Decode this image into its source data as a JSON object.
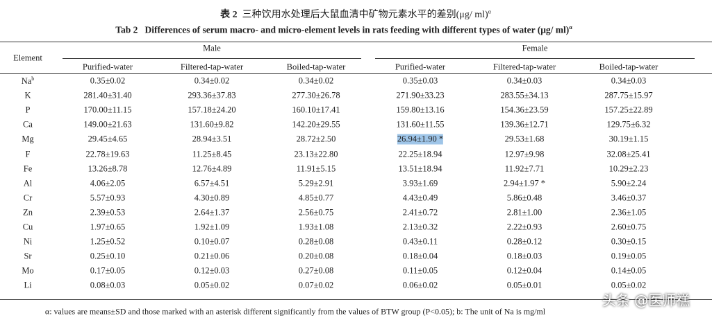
{
  "title_cn": {
    "label": "表 2",
    "text": "三种饮用水处理后大鼠血清中矿物元素水平的差别(μg/ ml)",
    "sup": "α"
  },
  "title_en": {
    "label": "Tab 2",
    "text": "Differences of serum macro- and micro-element levels in rats feeding with different types of water (μg/ ml)",
    "sup": "α"
  },
  "table": {
    "element_header": "Element",
    "groups": [
      {
        "name": "Male",
        "columns": [
          "Purified-water",
          "Filtered-tap-water",
          "Boiled-tap-water"
        ]
      },
      {
        "name": "Female",
        "columns": [
          "Purified-water",
          "Filtered-tap-water",
          "Boiled-tap-water"
        ]
      }
    ],
    "rows": [
      {
        "element": "Na",
        "sup": "b",
        "values": [
          "0.35±0.02",
          "0.34±0.02",
          "0.34±0.02",
          "0.35±0.03",
          "0.34±0.03",
          "0.34±0.03"
        ]
      },
      {
        "element": "K",
        "values": [
          "281.40±31.40",
          "293.36±37.83",
          "277.30±26.78",
          "271.90±33.23",
          "283.55±34.13",
          "287.75±15.97"
        ]
      },
      {
        "element": "P",
        "values": [
          "170.00±11.15",
          "157.18±24.20",
          "160.10±17.41",
          "159.80±13.16",
          "154.36±23.59",
          "157.25±22.89"
        ]
      },
      {
        "element": "Ca",
        "values": [
          "149.00±21.63",
          "131.60±9.82",
          "142.20±29.55",
          "131.60±11.55",
          "139.36±12.71",
          "129.75±6.32"
        ]
      },
      {
        "element": "Mg",
        "values": [
          "29.45±4.65",
          "28.94±3.51",
          "28.72±2.50",
          "26.94±1.90 *",
          "29.53±1.68",
          "30.19±1.15"
        ]
      },
      {
        "element": "F",
        "values": [
          "22.78±19.63",
          "11.25±8.45",
          "23.13±22.80",
          "22.25±18.94",
          "12.97±9.98",
          "32.08±25.41"
        ]
      },
      {
        "element": "Fe",
        "values": [
          "13.26±8.78",
          "12.76±4.89",
          "11.91±5.15",
          "13.51±18.94",
          "11.92±7.71",
          "10.29±2.23"
        ]
      },
      {
        "element": "Al",
        "values": [
          "4.06±2.05",
          "6.57±4.51",
          "5.29±2.91",
          "3.93±1.69",
          "2.94±1.97 *",
          "5.90±2.24"
        ]
      },
      {
        "element": "Cr",
        "values": [
          "5.57±0.93",
          "4.30±0.89",
          "4.85±0.77",
          "4.43±0.49",
          "5.86±0.48",
          "3.46±0.37"
        ]
      },
      {
        "element": "Zn",
        "values": [
          "2.39±0.53",
          "2.64±1.37",
          "2.56±0.75",
          "2.41±0.72",
          "2.81±1.00",
          "2.36±1.05"
        ]
      },
      {
        "element": "Cu",
        "values": [
          "1.97±0.65",
          "1.92±1.09",
          "1.93±1.08",
          "2.13±0.32",
          "2.22±0.93",
          "2.60±0.75"
        ]
      },
      {
        "element": "Ni",
        "values": [
          "1.25±0.52",
          "0.10±0.07",
          "0.28±0.08",
          "0.43±0.11",
          "0.28±0.12",
          "0.30±0.15"
        ]
      },
      {
        "element": "Sr",
        "values": [
          "0.25±0.10",
          "0.21±0.06",
          "0.20±0.08",
          "0.18±0.04",
          "0.18±0.03",
          "0.19±0.05"
        ]
      },
      {
        "element": "Mo",
        "values": [
          "0.17±0.05",
          "0.12±0.03",
          "0.27±0.08",
          "0.11±0.05",
          "0.12±0.04",
          "0.14±0.05"
        ]
      },
      {
        "element": "Li",
        "values": [
          "0.08±0.03",
          "0.05±0.02",
          "0.07±0.02",
          "0.06±0.02",
          "0.05±0.01",
          "0.05±0.02"
        ]
      }
    ]
  },
  "footnote": "α: values are means±SD and those marked with an asterisk different significantly from the values of BTW group (P<0.05); b: The unit of Na is mg/ml",
  "watermark": "头条 @医师禚"
}
